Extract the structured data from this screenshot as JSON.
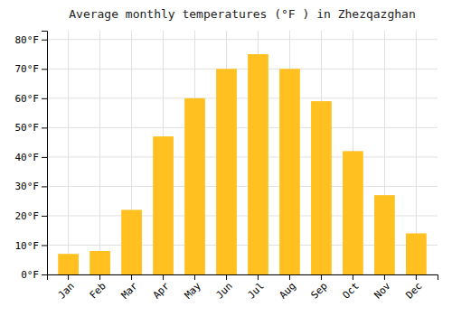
{
  "chart_data": {
    "type": "bar",
    "title": "Average monthly temperatures (°F ) in Zhezqazghan",
    "categories": [
      "Jan",
      "Feb",
      "Mar",
      "Apr",
      "May",
      "Jun",
      "Jul",
      "Aug",
      "Sep",
      "Oct",
      "Nov",
      "Dec"
    ],
    "values": [
      7,
      8,
      22,
      47,
      60,
      70,
      75,
      70,
      59,
      42,
      27,
      14
    ],
    "color": "#FFC020",
    "ylim": [
      0,
      83
    ],
    "yticks": [
      {
        "value": 0,
        "label": "0°F"
      },
      {
        "value": 10,
        "label": "10°F"
      },
      {
        "value": 20,
        "label": "20°F"
      },
      {
        "value": 30,
        "label": "30°F"
      },
      {
        "value": 40,
        "label": "40°F"
      },
      {
        "value": 50,
        "label": "50°F"
      },
      {
        "value": 60,
        "label": "60°F"
      },
      {
        "value": 70,
        "label": "70°F"
      },
      {
        "value": 80,
        "label": "80°F"
      }
    ],
    "grid": true
  }
}
